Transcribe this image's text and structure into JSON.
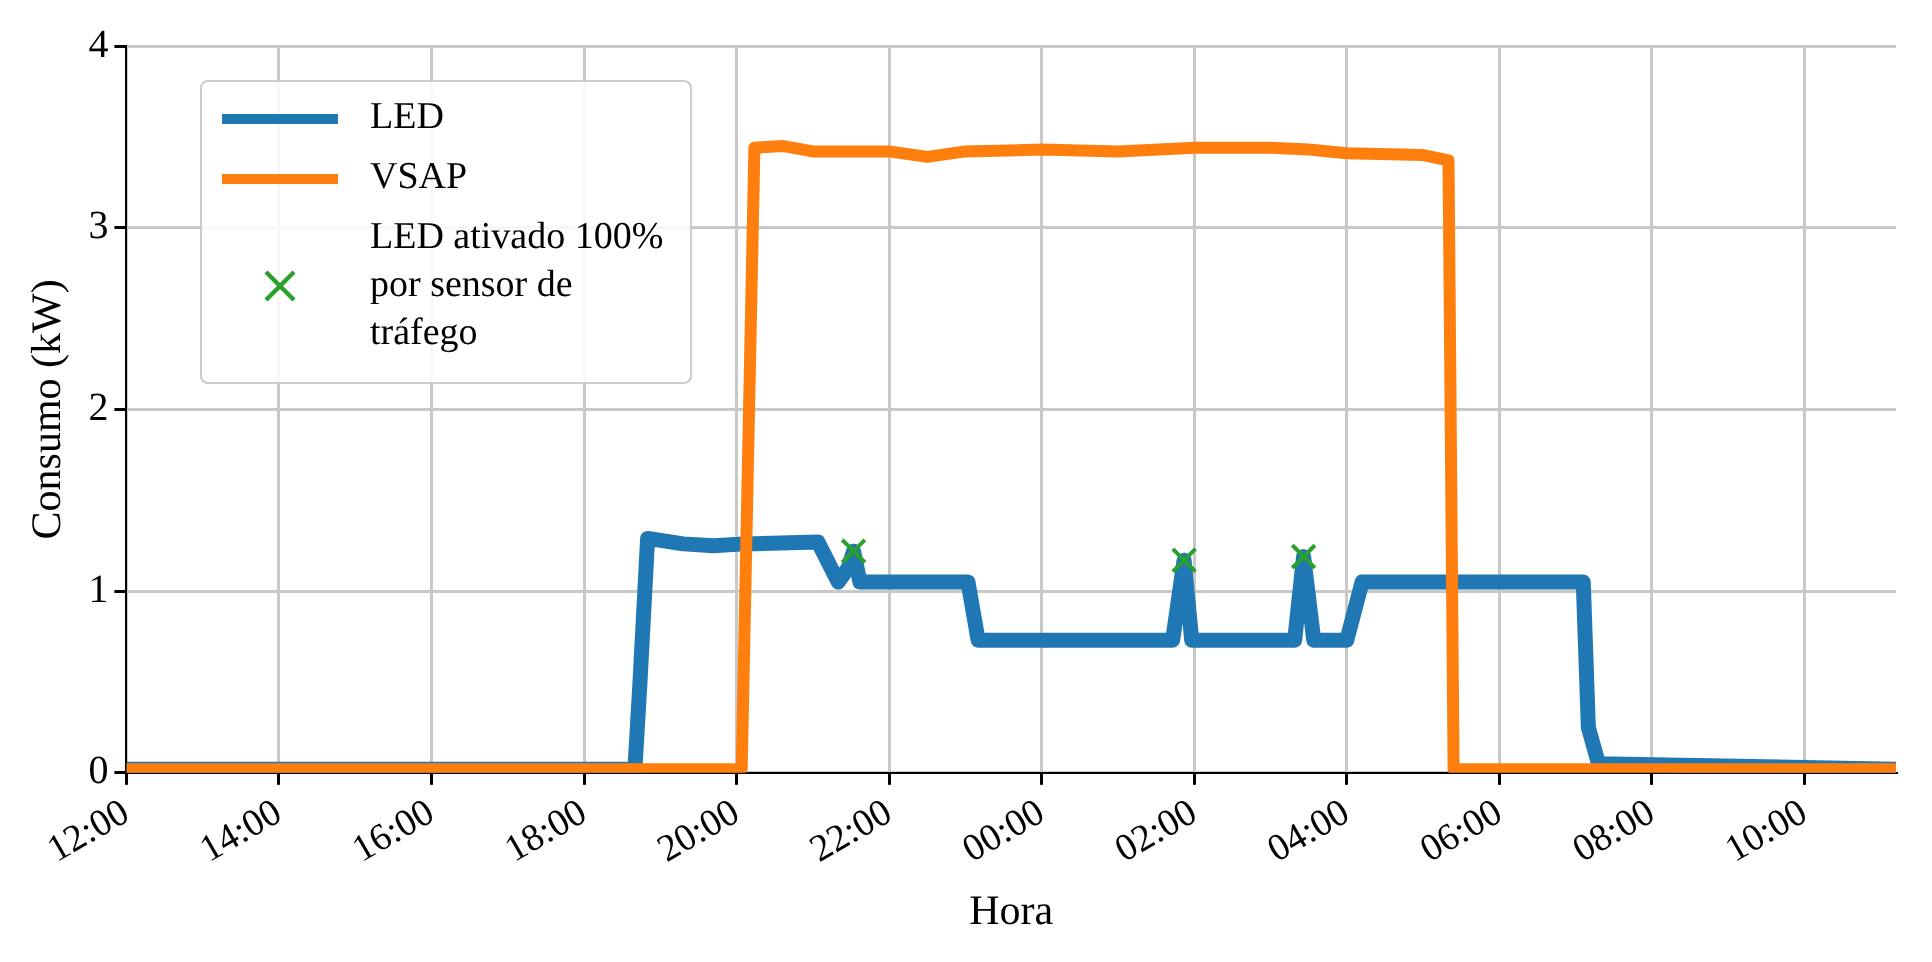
{
  "chart_data": {
    "type": "line",
    "xlabel": "Hora",
    "ylabel": "Consumo (kW)",
    "xlim": [
      "--01-01T12:00",
      "--01-02T11:12"
    ],
    "ylim": [
      0,
      4
    ],
    "xticks": [
      {
        "value": "--01-01T12:00",
        "label": "12:00"
      },
      {
        "value": "--01-01T14:00",
        "label": "14:00"
      },
      {
        "value": "--01-01T16:00",
        "label": "16:00"
      },
      {
        "value": "--01-01T18:00",
        "label": "18:00"
      },
      {
        "value": "--01-01T20:00",
        "label": "20:00"
      },
      {
        "value": "--01-01T22:00",
        "label": "22:00"
      },
      {
        "value": "--01-02T00:00",
        "label": "00:00"
      },
      {
        "value": "--01-02T02:00",
        "label": "02:00"
      },
      {
        "value": "--01-02T04:00",
        "label": "04:00"
      },
      {
        "value": "--01-02T06:00",
        "label": "06:00"
      },
      {
        "value": "--01-02T08:00",
        "label": "08:00"
      },
      {
        "value": "--01-02T10:00",
        "label": "10:00"
      }
    ],
    "yticks": [
      0,
      1,
      2,
      3,
      4
    ],
    "grid": true,
    "legend": "top left",
    "line_style": "solid",
    "series": [
      {
        "name": "LED",
        "color": "#1f77b4",
        "marker": "none",
        "x": [
          "--01-01T12:00",
          "--01-01T18:40",
          "--01-01T18:44",
          "--01-01T18:50",
          "--01-01T19:18",
          "--01-01T19:42",
          "--01-01T20:06",
          "--01-01T21:04",
          "--01-01T21:20",
          "--01-01T21:28",
          "--01-01T21:32",
          "--01-01T21:37",
          "--01-01T23:02",
          "--01-01T23:10",
          "--01-02T01:43",
          "--01-02T01:52",
          "--01-02T01:58",
          "--01-02T03:19",
          "--01-02T03:26",
          "--01-02T03:34",
          "--01-02T04:00",
          "--01-02T04:12",
          "--01-02T07:06",
          "--01-02T07:10",
          "--01-02T07:18",
          "--01-02T11:12"
        ],
        "values": [
          0.02,
          0.02,
          0.5,
          1.29,
          1.26,
          1.25,
          1.26,
          1.27,
          1.05,
          1.13,
          1.22,
          1.05,
          1.05,
          0.73,
          0.73,
          1.17,
          0.73,
          0.73,
          1.19,
          0.73,
          0.73,
          1.05,
          1.05,
          0.25,
          0.05,
          0.02
        ]
      },
      {
        "name": "VSAP",
        "color": "#ff7f0e",
        "marker": "none",
        "x": [
          "--01-01T12:00",
          "--01-01T20:04",
          "--01-01T20:14",
          "--01-01T20:36",
          "--01-01T21:00",
          "--01-01T22:00",
          "--01-01T22:30",
          "--01-01T23:00",
          "--01-02T00:00",
          "--01-02T01:00",
          "--01-02T02:00",
          "--01-02T03:00",
          "--01-02T03:30",
          "--01-02T04:00",
          "--01-02T05:00",
          "--01-02T05:20",
          "--01-02T05:24",
          "--01-02T11:12"
        ],
        "values": [
          0.02,
          0.02,
          3.44,
          3.45,
          3.42,
          3.42,
          3.39,
          3.42,
          3.43,
          3.42,
          3.44,
          3.44,
          3.43,
          3.41,
          3.4,
          3.37,
          0.02,
          0.02
        ]
      },
      {
        "name": "LED ativado 100% por sensor de tráfego",
        "type": "scatter",
        "color": "#2ca02c",
        "marker": "cross",
        "x": [
          "--01-01T21:32",
          "--01-02T01:52",
          "--01-02T03:26"
        ],
        "values": [
          1.22,
          1.17,
          1.19
        ]
      }
    ]
  }
}
